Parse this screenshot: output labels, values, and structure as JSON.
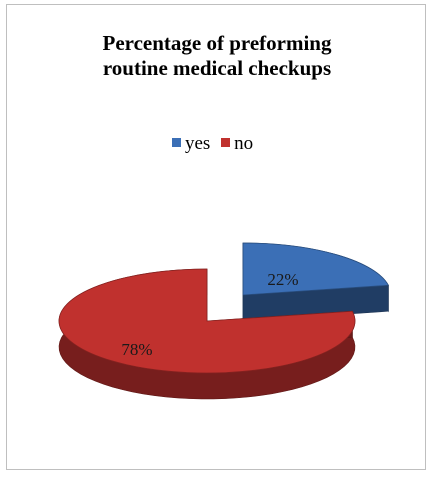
{
  "chart_data": {
    "type": "pie",
    "title_lines": [
      "Percentage of preforming",
      "routine medical checkups"
    ],
    "categories": [
      "yes",
      "no"
    ],
    "values": [
      22,
      78
    ],
    "data_labels": [
      "22%",
      "78%"
    ],
    "colors": [
      "#3b6fb6",
      "#c0312e"
    ],
    "legend": {
      "entries": [
        "yes",
        "no"
      ],
      "placement": "top"
    },
    "style": "3d-exploded"
  }
}
